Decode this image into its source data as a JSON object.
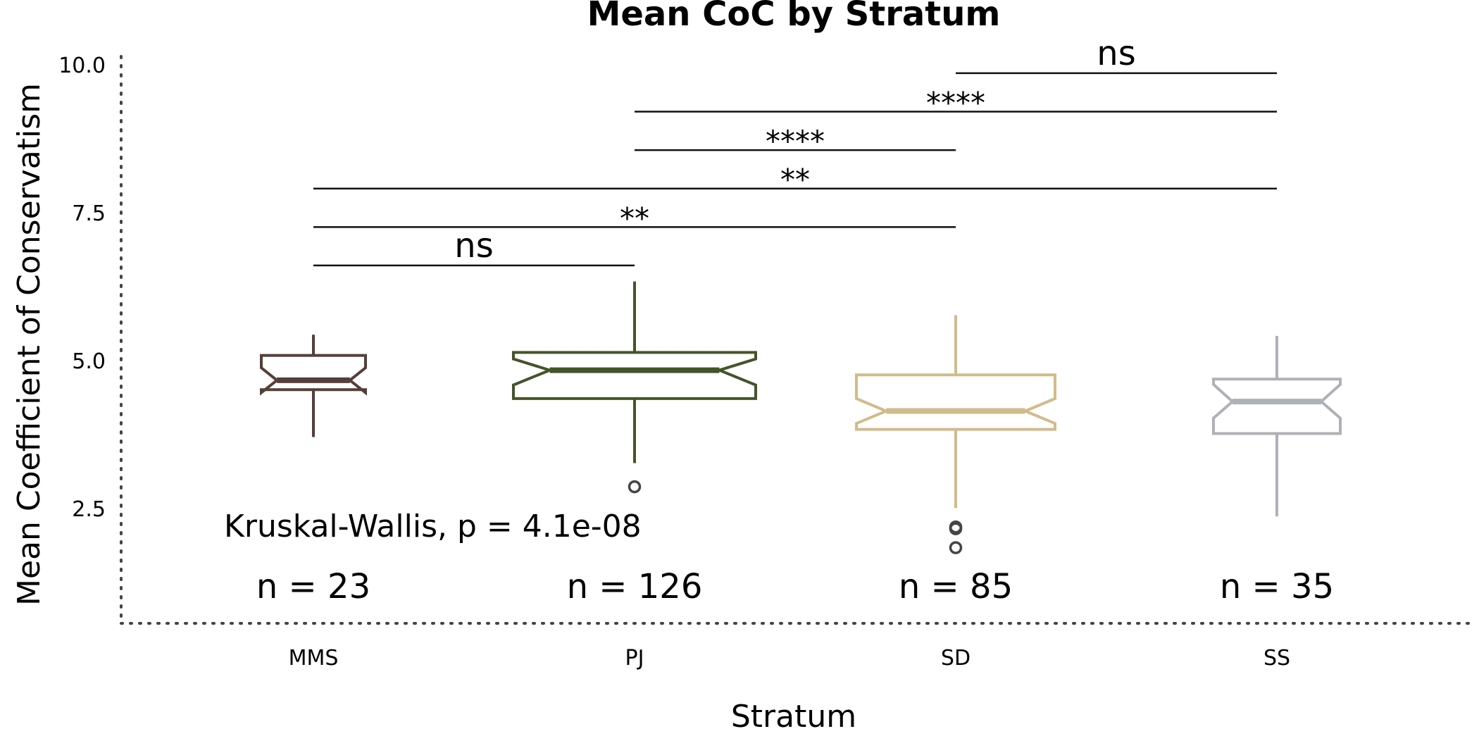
{
  "chart_data": {
    "type": "boxplot",
    "title": "Mean CoC by Stratum",
    "xlabel": "Stratum",
    "ylabel": "Mean Coefficient of Conservatism",
    "ylim": [
      0.3,
      10.2
    ],
    "yticks": [
      {
        "value": 2.5,
        "label": "2.5"
      },
      {
        "value": 5.0,
        "label": "5.0"
      },
      {
        "value": 7.5,
        "label": "7.5"
      },
      {
        "value": 10.0,
        "label": "10.0"
      }
    ],
    "notched": true,
    "grid": false,
    "legend": "none",
    "categories": [
      "MMS",
      "PJ",
      "SD",
      "SS"
    ],
    "boxes": [
      {
        "category": "MMS",
        "color": "#553f38",
        "whisker_low": 3.72,
        "q1": 4.52,
        "notch_low": 4.47,
        "median": 4.68,
        "notch_high": 4.89,
        "q3": 5.1,
        "whisker_high": 5.45,
        "outliers": [],
        "n_label": "n = 23"
      },
      {
        "category": "PJ",
        "color": "#44542a",
        "whisker_low": 3.28,
        "q1": 4.37,
        "notch_low": 4.6,
        "median": 4.85,
        "notch_high": 5.04,
        "q3": 5.15,
        "whisker_high": 6.35,
        "outliers": [
          2.88
        ],
        "n_label": "n = 126"
      },
      {
        "category": "SD",
        "color": "#d2bb8b",
        "whisker_low": 2.52,
        "q1": 3.85,
        "notch_low": 3.95,
        "median": 4.16,
        "notch_high": 4.37,
        "q3": 4.77,
        "whisker_high": 5.78,
        "outliers": [
          2.2,
          2.17,
          1.85
        ],
        "n_label": "n = 85"
      },
      {
        "category": "SS",
        "color": "#aeb1b5",
        "whisker_low": 2.38,
        "q1": 3.78,
        "notch_low": 4.04,
        "median": 4.32,
        "notch_high": 4.61,
        "q3": 4.7,
        "whisker_high": 5.43,
        "outliers": [],
        "n_label": "n = 35"
      }
    ],
    "comparisons": [
      {
        "from": "MMS",
        "to": "PJ",
        "y": 6.62,
        "label": "ns"
      },
      {
        "from": "MMS",
        "to": "SD",
        "y": 7.27,
        "label": "**"
      },
      {
        "from": "MMS",
        "to": "SS",
        "y": 7.92,
        "label": "**"
      },
      {
        "from": "PJ",
        "to": "SD",
        "y": 8.57,
        "label": "****"
      },
      {
        "from": "PJ",
        "to": "SS",
        "y": 9.22,
        "label": "****"
      },
      {
        "from": "SD",
        "to": "SS",
        "y": 9.87,
        "label": "ns"
      }
    ],
    "global_test": {
      "label": "Kruskal-Wallis, p = 4.1e-08"
    }
  }
}
